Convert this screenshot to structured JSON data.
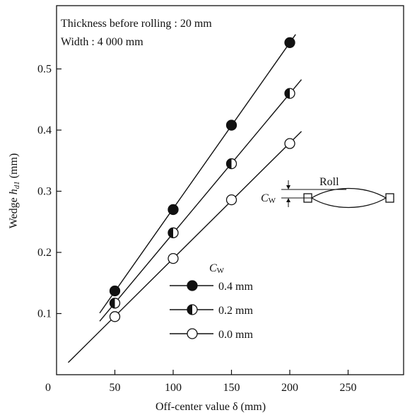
{
  "chart_data": {
    "type": "scatter",
    "title": "",
    "xlabel": "Off-center value δ (mm)",
    "ylabel": "Wedge h_d1 (mm)",
    "ylabel_main": "Wedge ",
    "ylabel_var": "h",
    "ylabel_sub": "d1",
    "ylabel_unit": " (mm)",
    "xlim": [
      0,
      300
    ],
    "ylim": [
      0,
      0.6
    ],
    "x_ticks": [
      0,
      50,
      100,
      150,
      200,
      250
    ],
    "x_tick_labels": [
      "0",
      "50",
      "100",
      "150",
      "200",
      "250"
    ],
    "y_ticks": [
      0.1,
      0.2,
      0.3,
      0.4,
      0.5
    ],
    "y_tick_labels": [
      "0.1",
      "0.2",
      "0.3",
      "0.4",
      "0.5"
    ],
    "grid": false,
    "annotations": {
      "thickness": "Thickness before rolling : 20 mm",
      "width": "Width : 4 000 mm",
      "roll_label": "Roll",
      "cw_label": "C",
      "cw_sub": "W"
    },
    "legend": {
      "title_main": "C",
      "title_sub": "W",
      "placement": "lower-right"
    },
    "series": [
      {
        "name": "0.4 mm",
        "marker": "filled",
        "x": [
          50,
          100,
          150,
          200
        ],
        "y": [
          0.137,
          0.27,
          0.408,
          0.543
        ],
        "fit_x": [
          37,
          205
        ]
      },
      {
        "name": "0.2 mm",
        "marker": "half",
        "x": [
          50,
          100,
          150,
          200
        ],
        "y": [
          0.117,
          0.232,
          0.345,
          0.46
        ],
        "fit_x": [
          37,
          210
        ]
      },
      {
        "name": "0.0 mm",
        "marker": "open",
        "x": [
          50,
          100,
          150,
          200
        ],
        "y": [
          0.095,
          0.19,
          0.286,
          0.378
        ],
        "fit_x": [
          10,
          210
        ]
      }
    ]
  }
}
